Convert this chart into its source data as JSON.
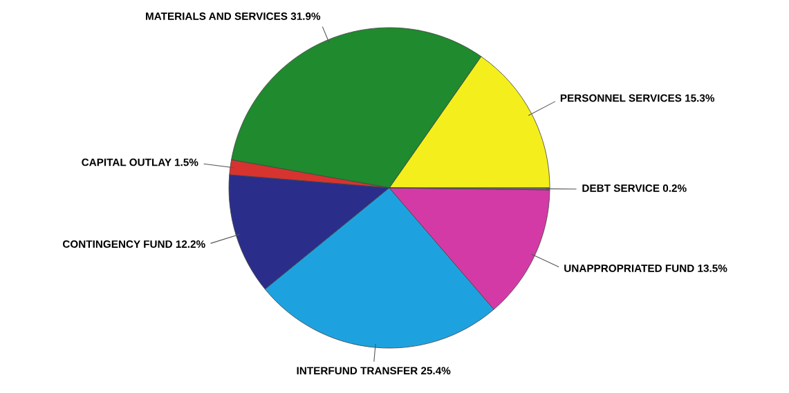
{
  "chart_data": {
    "type": "pie",
    "categories": [
      "PERSONNEL SERVICES",
      "MATERIALS AND SERVICES",
      "CAPITAL OUTLAY",
      "CONTINGENCY FUND",
      "INTERFUND TRANSFER",
      "UNAPPROPRIATED FUND",
      "DEBT SERVICE"
    ],
    "values": [
      15.3,
      31.9,
      1.5,
      12.2,
      25.4,
      13.5,
      0.2
    ],
    "value_labels": [
      "15.3%",
      "31.9%",
      "1.5%",
      "12.2%",
      "25.4%",
      "13.5%",
      "0.2%"
    ],
    "colors": [
      "#f4ef1c",
      "#1f8a2e",
      "#d7342f",
      "#2a2e8a",
      "#1ea2df",
      "#d43aa6",
      "#6d6d6d"
    ],
    "legend": false
  }
}
